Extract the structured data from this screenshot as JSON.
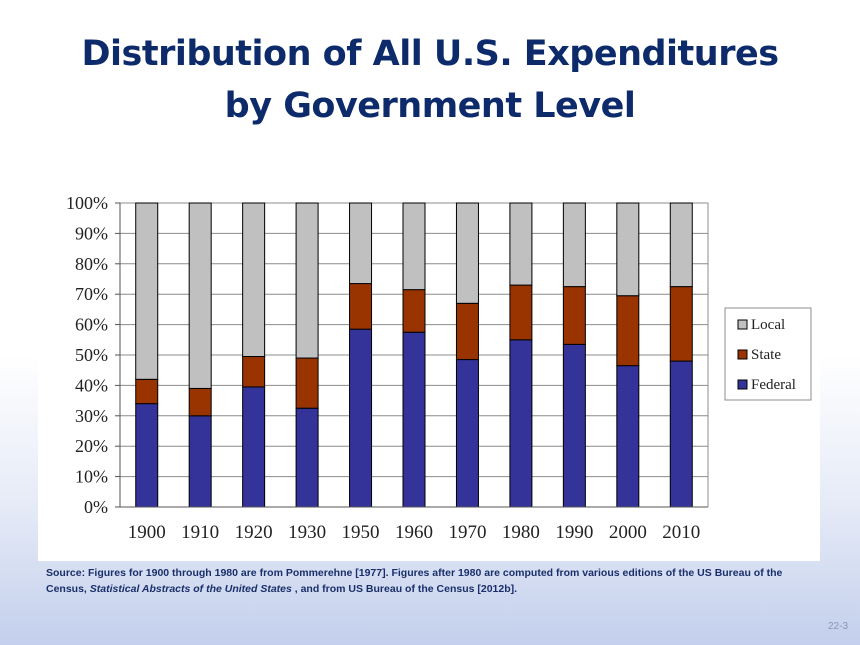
{
  "slide": {
    "title_line1": "Distribution of All U.S. Expenditures",
    "title_line2": "by Government Level",
    "source_part1": "Source: Figures for 1900 through 1980 are from Pommerehne [1977]. Figures after 1980 are computed from various editions of the US Bureau of the Census, ",
    "source_italic": "Statistical Abstracts of the United States",
    "source_part2": " , and from US Bureau of the Census [2012b].",
    "slide_number": "22-3"
  },
  "chart_data": {
    "type": "bar",
    "stacked": true,
    "categories": [
      "1900",
      "1910",
      "1920",
      "1930",
      "1950",
      "1960",
      "1970",
      "1980",
      "1990",
      "2000",
      "2010"
    ],
    "series": [
      {
        "name": "Federal",
        "color": "#333399",
        "values": [
          34,
          30,
          39.5,
          32.5,
          58.5,
          57.5,
          48.5,
          55,
          53.5,
          46.5,
          48
        ]
      },
      {
        "name": "State",
        "color": "#993300",
        "values": [
          8,
          9,
          10,
          16.5,
          15,
          14,
          18.5,
          18,
          19,
          23,
          24.5
        ]
      },
      {
        "name": "Local",
        "color": "#c0c0c0",
        "values": [
          58,
          61,
          50.5,
          51,
          26.5,
          28.5,
          33,
          27,
          27.5,
          30.5,
          27.5
        ]
      }
    ],
    "ylim": [
      0,
      100
    ],
    "yticks": [
      "0%",
      "10%",
      "20%",
      "30%",
      "40%",
      "50%",
      "60%",
      "70%",
      "80%",
      "90%",
      "100%"
    ],
    "legend": {
      "position": "right",
      "entries": [
        "Local",
        "State",
        "Federal"
      ]
    },
    "grid": true
  }
}
